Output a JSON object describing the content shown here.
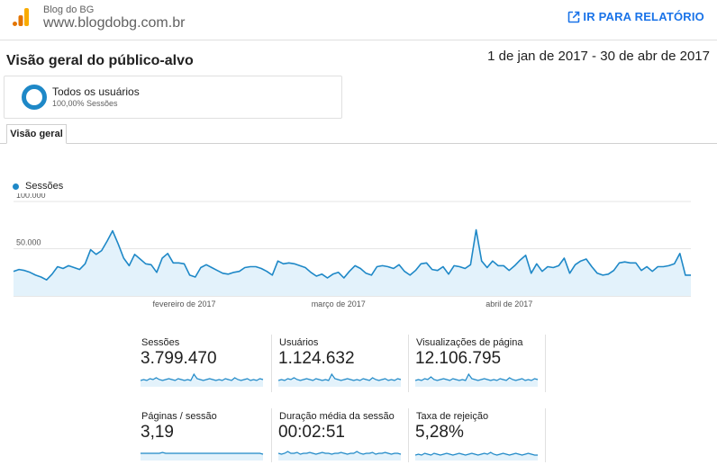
{
  "header": {
    "site_name": "Blog do BG",
    "site_url": "www.blogdobg.com.br",
    "goto_report_label": "IR PARA RELATÓRIO",
    "goto_icon": "open-in-new-icon",
    "logo_icon": "analytics-bars-icon"
  },
  "page": {
    "title": "Visão geral do público-alvo",
    "date_range": "1 de jan de 2017 - 30 de abr de 2017"
  },
  "segment": {
    "name": "Todos os usuários",
    "share": "100,00% Sessões"
  },
  "tabs": [
    {
      "label": "Visão geral",
      "active": true
    }
  ],
  "colors": {
    "accent": "#1e88c7",
    "fill": "#e3f2fb",
    "link": "#1a73e8"
  },
  "chart_data": {
    "type": "area",
    "series": [
      {
        "name": "Sessões",
        "values": [
          26000,
          28000,
          27000,
          25000,
          22000,
          20000,
          17000,
          23000,
          31000,
          29000,
          32000,
          30000,
          28000,
          34000,
          49000,
          44000,
          48000,
          58000,
          69000,
          55000,
          40000,
          32000,
          44000,
          39000,
          34000,
          33000,
          25000,
          40000,
          45000,
          35000,
          35000,
          34000,
          22000,
          20000,
          30000,
          33000,
          30000,
          27000,
          24000,
          23000,
          25000,
          26000,
          30000,
          31000,
          31000,
          29000,
          26000,
          22000,
          37000,
          34000,
          35000,
          34000,
          32000,
          30000,
          25000,
          21000,
          23000,
          19000,
          23000,
          25000,
          19000,
          26000,
          32000,
          29000,
          24000,
          22000,
          31000,
          32000,
          31000,
          29000,
          33000,
          26000,
          22000,
          27000,
          34000,
          35000,
          28000,
          27000,
          31000,
          23000,
          32000,
          31000,
          29000,
          33000,
          70000,
          37000,
          30000,
          37000,
          32000,
          32000,
          27000,
          32000,
          38000,
          43000,
          24000,
          34000,
          26000,
          31000,
          30000,
          32000,
          40000,
          24000,
          33000,
          37000,
          39000,
          31000,
          24000,
          22000,
          23000,
          27000,
          35000,
          36000,
          35000,
          35000,
          27000,
          31000,
          26000,
          31000,
          31000,
          32000,
          34000,
          45000,
          22000,
          22000
        ]
      }
    ],
    "x_tick_labels": [
      "fevereiro de 2017",
      "março de 2017",
      "abril de 2017"
    ],
    "x_tick_index": [
      31,
      59,
      90
    ],
    "y_tick_labels": [
      "100.000",
      "50.000"
    ],
    "y_ticks": [
      100000,
      50000
    ],
    "ylim": [
      0,
      100000
    ],
    "grid": true,
    "legend_position": "top-left"
  },
  "metrics": [
    {
      "label": "Sessões",
      "value": "3.799.470",
      "spark": [
        5,
        6,
        5,
        7,
        6,
        8,
        6,
        5,
        6,
        7,
        6,
        5,
        7,
        6,
        5,
        6,
        5,
        12,
        7,
        6,
        5,
        6,
        7,
        6,
        5,
        6,
        5,
        7,
        6,
        5,
        8,
        6,
        5,
        6,
        7,
        5,
        6,
        5,
        7,
        6
      ]
    },
    {
      "label": "Usuários",
      "value": "1.124.632",
      "spark": [
        5,
        6,
        5,
        7,
        6,
        8,
        6,
        5,
        6,
        7,
        6,
        5,
        7,
        6,
        5,
        6,
        5,
        12,
        7,
        6,
        5,
        6,
        7,
        6,
        5,
        6,
        5,
        7,
        6,
        5,
        8,
        6,
        5,
        6,
        7,
        5,
        6,
        5,
        7,
        6
      ]
    },
    {
      "label": "Visualizações de página",
      "value": "12.106.795",
      "spark": [
        5,
        6,
        5,
        7,
        6,
        9,
        6,
        5,
        6,
        7,
        6,
        5,
        7,
        6,
        5,
        6,
        5,
        12,
        7,
        6,
        5,
        6,
        7,
        6,
        5,
        6,
        5,
        7,
        6,
        5,
        8,
        6,
        5,
        6,
        7,
        5,
        6,
        5,
        7,
        6
      ]
    },
    {
      "label": "Páginas / sessão",
      "value": "3,19",
      "spark": [
        6,
        6,
        6,
        6,
        6,
        6,
        6,
        7,
        6,
        6,
        6,
        6,
        6,
        6,
        6,
        6,
        6,
        6,
        6,
        6,
        6,
        6,
        6,
        6,
        6,
        6,
        6,
        6,
        6,
        6,
        6,
        6,
        6,
        6,
        6,
        6,
        6,
        6,
        6,
        5
      ]
    },
    {
      "label": "Duração média da sessão",
      "value": "00:02:51",
      "spark": [
        6,
        5,
        6,
        8,
        6,
        6,
        7,
        5,
        6,
        6,
        7,
        6,
        5,
        6,
        7,
        6,
        6,
        5,
        6,
        6,
        7,
        6,
        5,
        6,
        6,
        8,
        6,
        5,
        6,
        6,
        7,
        5,
        6,
        6,
        7,
        6,
        5,
        6,
        6,
        5
      ]
    },
    {
      "label": "Taxa de rejeição",
      "value": "5,28%",
      "spark": [
        4,
        5,
        4,
        6,
        5,
        4,
        6,
        5,
        4,
        5,
        6,
        5,
        4,
        5,
        6,
        5,
        4,
        5,
        6,
        5,
        4,
        5,
        6,
        5,
        7,
        5,
        4,
        5,
        6,
        5,
        4,
        5,
        6,
        5,
        4,
        5,
        6,
        5,
        4,
        4
      ]
    }
  ]
}
